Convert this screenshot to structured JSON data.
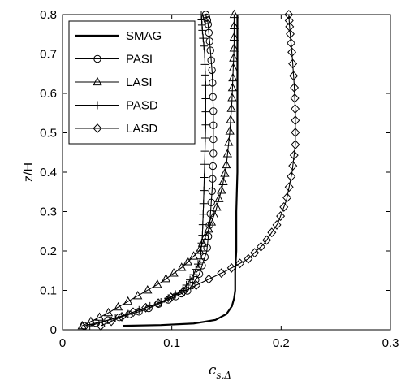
{
  "chart_data": {
    "type": "line",
    "xlabel": "c",
    "xlabel_sub": "s,Δ",
    "ylabel": "z/H",
    "xlim": [
      0,
      0.3
    ],
    "ylim": [
      0,
      0.8
    ],
    "xticks": [
      "0",
      "0.1",
      "0.2",
      "0.3"
    ],
    "yticks": [
      "0",
      "0.1",
      "0.2",
      "0.3",
      "0.4",
      "0.5",
      "0.6",
      "0.7",
      "0.8"
    ],
    "grid": false,
    "legend_position": "top-left",
    "series": [
      {
        "name": "SMAG",
        "marker": "none",
        "points": [
          [
            0.055,
            0.01
          ],
          [
            0.09,
            0.012
          ],
          [
            0.12,
            0.016
          ],
          [
            0.14,
            0.025
          ],
          [
            0.15,
            0.04
          ],
          [
            0.155,
            0.06
          ],
          [
            0.157,
            0.08
          ],
          [
            0.158,
            0.1
          ],
          [
            0.158,
            0.15
          ],
          [
            0.159,
            0.2
          ],
          [
            0.159,
            0.3
          ],
          [
            0.16,
            0.4
          ],
          [
            0.16,
            0.5
          ],
          [
            0.16,
            0.6
          ],
          [
            0.16,
            0.7
          ],
          [
            0.16,
            0.8
          ]
        ]
      },
      {
        "name": "PASI",
        "marker": "circle",
        "points": [
          [
            0.02,
            0.01
          ],
          [
            0.05,
            0.03
          ],
          [
            0.075,
            0.05
          ],
          [
            0.1,
            0.08
          ],
          [
            0.115,
            0.1
          ],
          [
            0.125,
            0.14
          ],
          [
            0.132,
            0.2
          ],
          [
            0.135,
            0.28
          ],
          [
            0.137,
            0.36
          ],
          [
            0.138,
            0.45
          ],
          [
            0.138,
            0.55
          ],
          [
            0.137,
            0.65
          ],
          [
            0.135,
            0.72
          ],
          [
            0.133,
            0.78
          ],
          [
            0.131,
            0.8
          ]
        ]
      },
      {
        "name": "LASI",
        "marker": "triangle",
        "points": [
          [
            0.018,
            0.01
          ],
          [
            0.04,
            0.04
          ],
          [
            0.065,
            0.08
          ],
          [
            0.09,
            0.12
          ],
          [
            0.11,
            0.16
          ],
          [
            0.125,
            0.2
          ],
          [
            0.133,
            0.25
          ],
          [
            0.14,
            0.3
          ],
          [
            0.146,
            0.36
          ],
          [
            0.15,
            0.42
          ],
          [
            0.153,
            0.5
          ],
          [
            0.155,
            0.58
          ],
          [
            0.156,
            0.65
          ],
          [
            0.157,
            0.72
          ],
          [
            0.157,
            0.8
          ]
        ]
      },
      {
        "name": "PASD",
        "marker": "plus",
        "points": [
          [
            0.025,
            0.01
          ],
          [
            0.06,
            0.04
          ],
          [
            0.09,
            0.07
          ],
          [
            0.11,
            0.1
          ],
          [
            0.12,
            0.14
          ],
          [
            0.126,
            0.18
          ],
          [
            0.128,
            0.24
          ],
          [
            0.129,
            0.32
          ],
          [
            0.13,
            0.42
          ],
          [
            0.131,
            0.52
          ],
          [
            0.131,
            0.62
          ],
          [
            0.13,
            0.7
          ],
          [
            0.128,
            0.76
          ],
          [
            0.127,
            0.8
          ]
        ]
      },
      {
        "name": "LASD",
        "marker": "diamond",
        "points": [
          [
            0.035,
            0.01
          ],
          [
            0.06,
            0.04
          ],
          [
            0.09,
            0.07
          ],
          [
            0.12,
            0.11
          ],
          [
            0.15,
            0.15
          ],
          [
            0.17,
            0.18
          ],
          [
            0.185,
            0.22
          ],
          [
            0.197,
            0.27
          ],
          [
            0.205,
            0.33
          ],
          [
            0.21,
            0.4
          ],
          [
            0.213,
            0.47
          ],
          [
            0.213,
            0.55
          ],
          [
            0.212,
            0.62
          ],
          [
            0.21,
            0.7
          ],
          [
            0.208,
            0.76
          ],
          [
            0.207,
            0.8
          ]
        ]
      }
    ]
  }
}
